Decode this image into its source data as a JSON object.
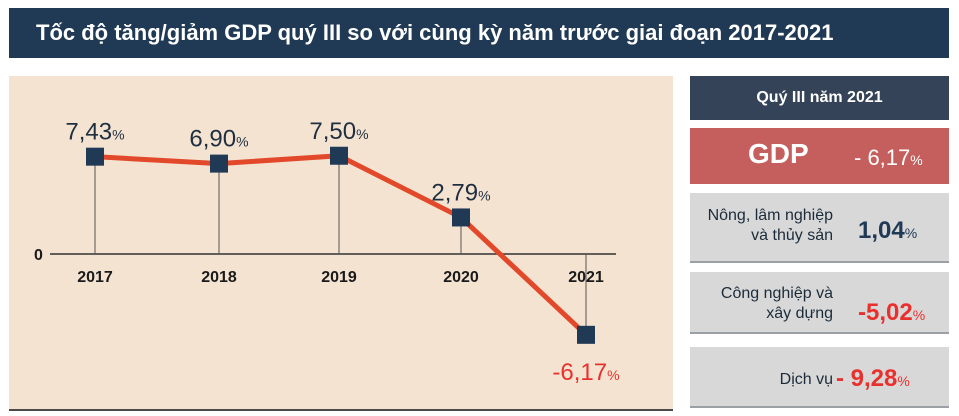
{
  "title": "Tốc độ tăng/giảm GDP quý III so với cùng kỳ năm trước giai đoạn 2017-2021",
  "chart_data": {
    "type": "line",
    "categories": [
      "2017",
      "2018",
      "2019",
      "2020",
      "2021"
    ],
    "values": [
      7.43,
      6.9,
      7.5,
      2.79,
      -6.17
    ],
    "value_labels": [
      "7,43",
      "6,90",
      "7,50",
      "2,79",
      "-6,17"
    ],
    "unit": "%",
    "zero_label": "0",
    "line_color": "#e2482a",
    "marker_color": "#203a55",
    "negative_label_color": "#e8312d",
    "grid": false
  },
  "sidebar": {
    "header": "Quý III năm 2021",
    "gdp": {
      "label": "GDP",
      "value": "- 6,17",
      "unit": "%"
    },
    "sectors": [
      {
        "label_line1": "Nông, lâm nghiệp",
        "label_line2": "và thủy sản",
        "value": "1,04",
        "unit": "%"
      },
      {
        "label_line1": "Công nghiệp và",
        "label_line2": "xây dựng",
        "value": "-5,02",
        "unit": "%"
      },
      {
        "label_line1": "Dịch vụ",
        "label_line2": "",
        "value": "- 9,28",
        "unit": "%"
      }
    ]
  }
}
